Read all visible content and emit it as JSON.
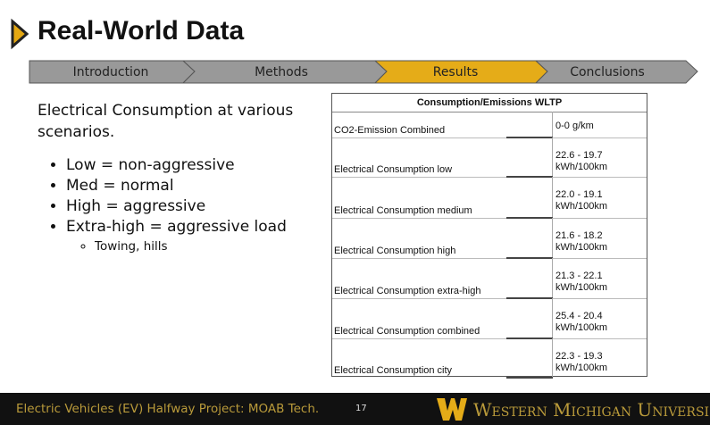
{
  "header": {
    "title": "Real-World Data"
  },
  "nav": [
    "Introduction",
    "Methods",
    "Results",
    "Conclusions"
  ],
  "left": {
    "intro": "Electrical Consumption at various scenarios.",
    "bullets": [
      "Low = non-aggressive",
      "Med = normal",
      "High = aggressive",
      "Extra-high = aggressive load"
    ],
    "sub_bullets": [
      "Towing, hills"
    ]
  },
  "table": {
    "title": "Consumption/Emissions WLTP",
    "rows": [
      [
        "CO2-Emission Combined",
        "0-0 g/km"
      ],
      [
        "Electrical Consumption low",
        "22.6 - 19.7 kWh/100km"
      ],
      [
        "Electrical Consumption medium",
        "22.0 - 19.1 kWh/100km"
      ],
      [
        "Electrical Consumption high",
        "21.6 - 18.2 kWh/100km"
      ],
      [
        "Electrical Consumption extra-high",
        "21.3 - 22.1 kWh/100km"
      ],
      [
        "Electrical Consumption combined",
        "25.4 - 20.4 kWh/100km"
      ],
      [
        "Electrical Consumption city",
        "22.3 - 19.3 kWh/100km"
      ]
    ]
  },
  "footer": {
    "project": "Electric Vehicles (EV) Halfway Project: MOAB Tech.",
    "page": "17",
    "university": "Western Michigan Universi"
  }
}
